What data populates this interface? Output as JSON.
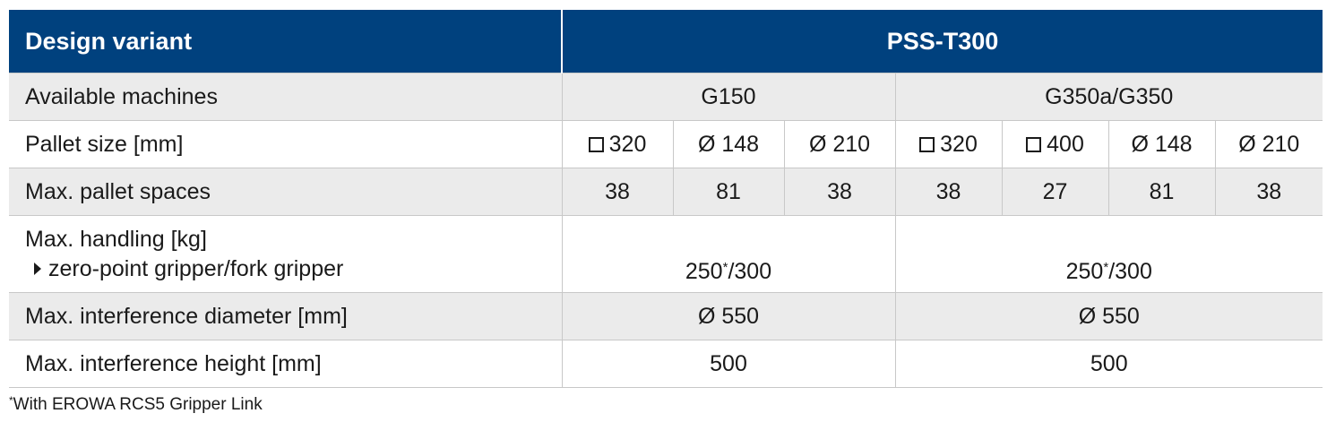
{
  "header": {
    "label": "Design variant",
    "value": "PSS-T300"
  },
  "rows": {
    "machines": {
      "label": "Available machines",
      "groups": [
        "G150",
        "G350a/G350"
      ]
    },
    "pallet_size": {
      "label": "Pallet size [mm]",
      "cells": [
        {
          "icon": "square-icon",
          "value": "320"
        },
        {
          "icon": "diameter-symbol",
          "value": "Ø 148"
        },
        {
          "icon": "diameter-symbol",
          "value": "Ø 210"
        },
        {
          "icon": "square-icon",
          "value": "320"
        },
        {
          "icon": "square-icon",
          "value": "400"
        },
        {
          "icon": "diameter-symbol",
          "value": "Ø 148"
        },
        {
          "icon": "diameter-symbol",
          "value": "Ø 210"
        }
      ]
    },
    "pallet_spaces": {
      "label": "Max. pallet spaces",
      "values": [
        "38",
        "81",
        "38",
        "38",
        "27",
        "81",
        "38"
      ]
    },
    "handling": {
      "label": "Max. handling [kg]",
      "sublabel": "zero-point gripper/fork gripper",
      "values": [
        {
          "value": "250",
          "mark": "*",
          "suffix": "/300"
        },
        {
          "value": "250",
          "mark": "*",
          "suffix": "/300"
        }
      ]
    },
    "interference_diameter": {
      "label": "Max. interference diameter [mm]",
      "values": [
        "Ø 550",
        "Ø 550"
      ]
    },
    "interference_height": {
      "label": "Max. interference height [mm]",
      "values": [
        "500",
        "500"
      ]
    }
  },
  "footnote": {
    "mark": "*",
    "text": "With EROWA RCS5 Gripper Link"
  },
  "colors": {
    "header_bg": "#00417e",
    "header_text": "#ffffff",
    "stripe_bg": "#ebebeb",
    "rule": "#c8c8c8"
  }
}
